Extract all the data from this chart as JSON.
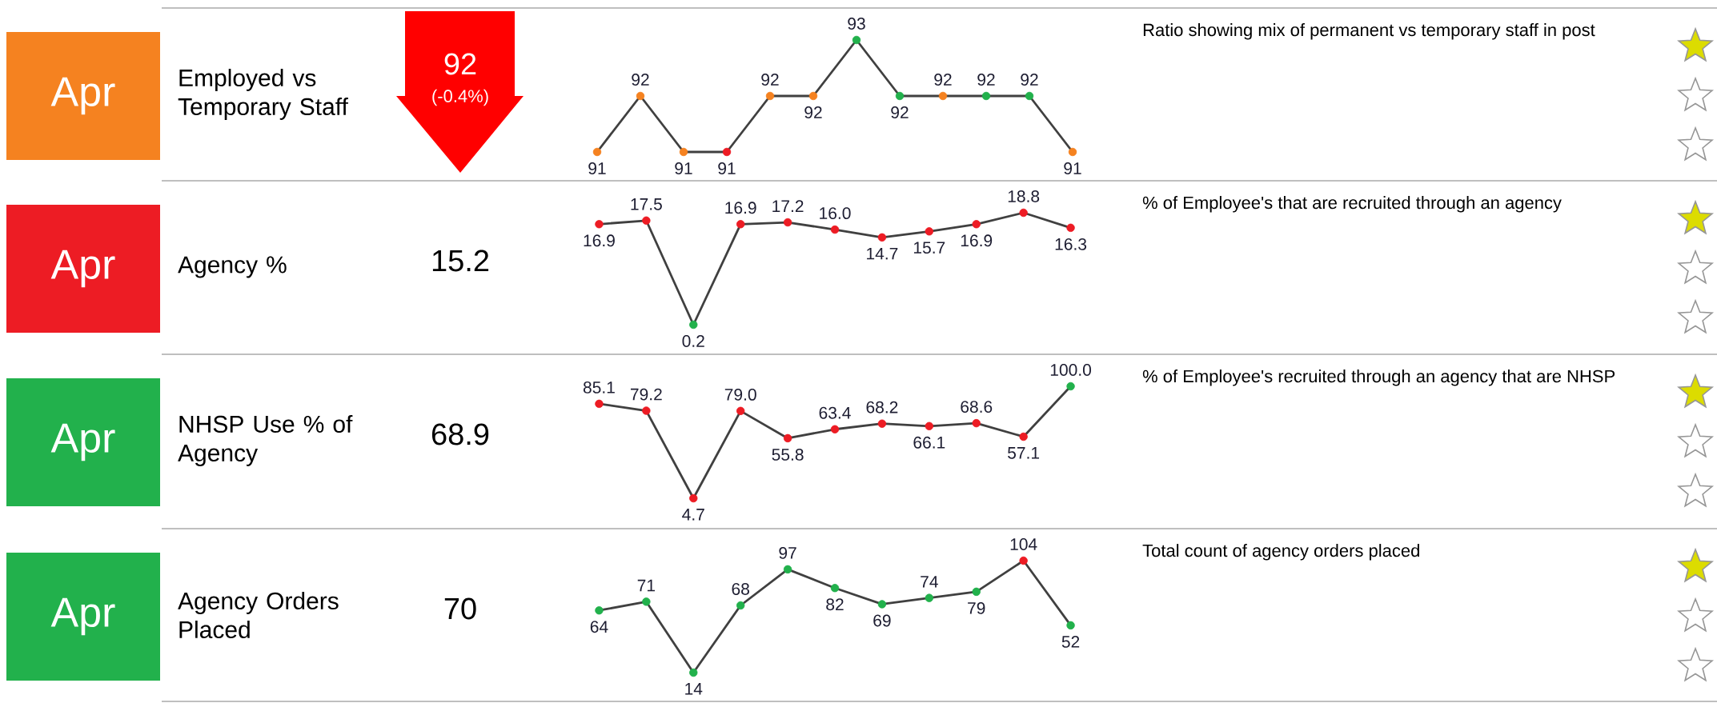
{
  "chart_data": [
    {
      "type": "line",
      "ylabel": "Employed vs Temporary Staff",
      "annotations": [
        "Apr",
        "92",
        "(-0.4%)",
        "Ratio showing mix of permanent vs temporary staff in post"
      ],
      "categories": [
        null,
        null,
        null,
        null,
        null,
        null,
        null,
        null,
        null,
        null,
        null,
        null
      ],
      "values": [
        91,
        92,
        91,
        91,
        92,
        92,
        93,
        92,
        92,
        92,
        92,
        91
      ],
      "color": "#404040",
      "colors": [
        "#f58220",
        "#f58220",
        "#f58220",
        "#ed1c24",
        "#f58220",
        "#f58220",
        "#22b14c",
        "#22b14c",
        "#f58220",
        "#22b14c",
        "#22b14c",
        "#f58220"
      ],
      "marker": "circle",
      "data_labels": true,
      "tick_labels": false
    },
    {
      "type": "line",
      "ylabel": "Agency %",
      "annotations": [
        "Apr",
        "15.2",
        "% of Employee's that are recruited through an agency"
      ],
      "categories": [
        null,
        null,
        null,
        null,
        null,
        null,
        null,
        null,
        null,
        null,
        null
      ],
      "values": [
        16.9,
        17.5,
        0.2,
        16.9,
        17.2,
        16.0,
        14.7,
        15.7,
        16.9,
        18.8,
        16.3
      ],
      "value_labels": [
        "16.9",
        "17.5",
        "0.2",
        "16.9",
        "17.2",
        "16.0",
        "14.7",
        "15.7",
        "16.9",
        "18.8",
        "16.3"
      ],
      "color": "#404040",
      "colors": [
        "#ed1c24",
        "#ed1c24",
        "#22b14c",
        "#ed1c24",
        "#ed1c24",
        "#ed1c24",
        "#ed1c24",
        "#ed1c24",
        "#ed1c24",
        "#ed1c24",
        "#ed1c24"
      ],
      "marker": "circle",
      "tick_labels": false
    },
    {
      "type": "line",
      "ylabel": "NHSP Use % of Agency",
      "annotations": [
        "Apr",
        "68.9",
        "% of Employee's recruited through an agency that are NHSP"
      ],
      "categories": [
        null,
        null,
        null,
        null,
        null,
        null,
        null,
        null,
        null,
        null,
        null
      ],
      "values": [
        85.1,
        79.2,
        4.7,
        79.0,
        55.8,
        63.4,
        68.2,
        66.1,
        68.6,
        57.1,
        100.0
      ],
      "value_labels": [
        "85.1",
        "79.2",
        "4.7",
        "79.0",
        "55.8",
        "63.4",
        "68.2",
        "66.1",
        "68.6",
        "57.1",
        "100.0"
      ],
      "color": "#404040",
      "colors": [
        "#ed1c24",
        "#ed1c24",
        "#ed1c24",
        "#ed1c24",
        "#ed1c24",
        "#ed1c24",
        "#ed1c24",
        "#ed1c24",
        "#ed1c24",
        "#ed1c24",
        "#22b14c"
      ],
      "marker": "circle",
      "tick_labels": false
    },
    {
      "type": "line",
      "ylabel": "Agency Orders Placed",
      "annotations": [
        "Apr",
        "70",
        "Total count of agency orders placed"
      ],
      "categories": [
        null,
        null,
        null,
        null,
        null,
        null,
        null,
        null,
        null,
        null,
        null
      ],
      "values": [
        64,
        71,
        14,
        68,
        97,
        82,
        69,
        74,
        79,
        104,
        52
      ],
      "color": "#404040",
      "colors": [
        "#22b14c",
        "#22b14c",
        "#22b14c",
        "#22b14c",
        "#22b14c",
        "#22b14c",
        "#22b14c",
        "#22b14c",
        "#22b14c",
        "#ed1c24",
        "#22b14c"
      ],
      "marker": "circle",
      "data_labels": true,
      "tick_labels": false
    }
  ]
}
